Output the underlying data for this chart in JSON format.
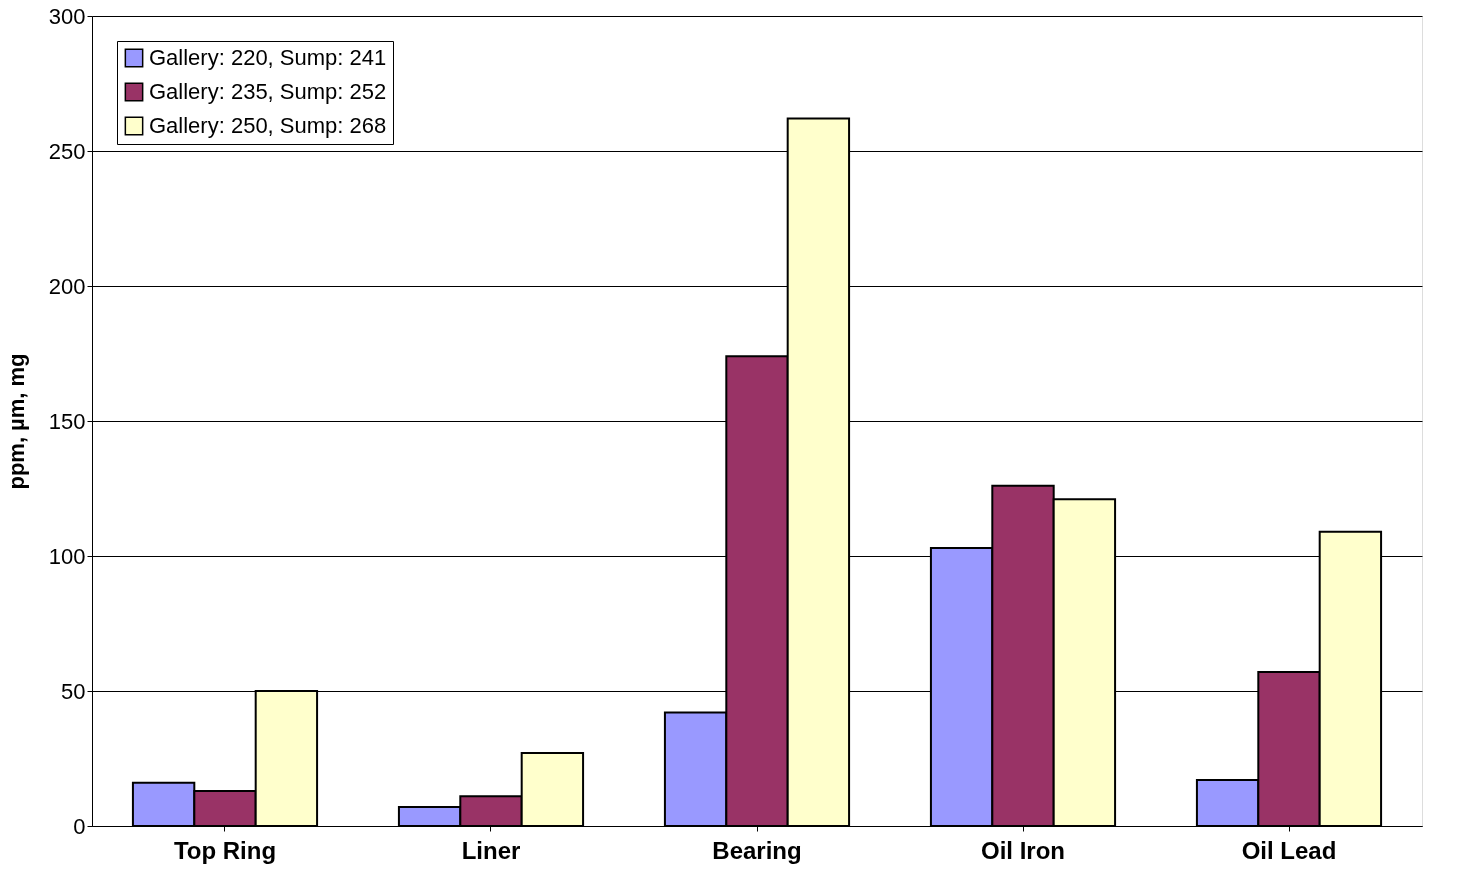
{
  "chart_data": {
    "type": "bar",
    "ylabel": "ppm, µm, mg",
    "categories": [
      "Top Ring",
      "Liner",
      "Bearing",
      "Oil Iron",
      "Oil Lead"
    ],
    "series": [
      {
        "name": "Gallery: 220, Sump: 241",
        "color": "#9999ff",
        "values": [
          16,
          7,
          42,
          103,
          17
        ]
      },
      {
        "name": "Gallery: 235, Sump: 252",
        "color": "#993366",
        "values": [
          13,
          11,
          174,
          126,
          57
        ]
      },
      {
        "name": "Gallery: 250, Sump: 268",
        "color": "#ffffcc",
        "values": [
          50,
          27,
          262,
          121,
          109
        ]
      }
    ],
    "ylim": [
      0,
      300
    ],
    "yticks": [
      0,
      50,
      100,
      150,
      200,
      250,
      300
    ],
    "grid": "y",
    "legend": "top left"
  }
}
